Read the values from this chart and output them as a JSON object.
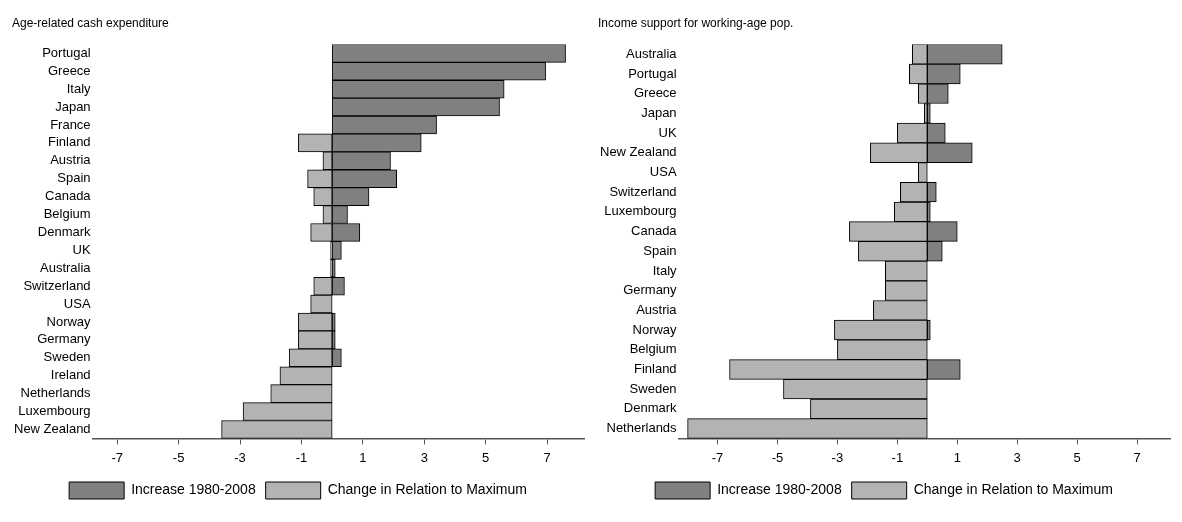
{
  "chart_data": [
    {
      "type": "bar",
      "orientation": "horizontal",
      "title": "Age-related cash expenditure",
      "categories": [
        "Portugal",
        "Greece",
        "Italy",
        "Japan",
        "France",
        "Finland",
        "Austria",
        "Spain",
        "Canada",
        "Belgium",
        "Denmark",
        "UK",
        "Australia",
        "Switzerland",
        "USA",
        "Norway",
        "Germany",
        "Sweden",
        "Ireland",
        "Netherlands",
        "Luxembourg",
        "New Zealand"
      ],
      "series": [
        {
          "name": "Increase 1980-2008",
          "color": "#808080",
          "values": [
            7.6,
            6.95,
            5.6,
            5.45,
            3.4,
            2.9,
            1.9,
            2.1,
            1.2,
            0.5,
            0.9,
            0.3,
            0.1,
            0.4,
            null,
            0.1,
            0.1,
            0.3,
            null,
            null,
            null,
            null
          ]
        },
        {
          "name": "Change in Relation to Maximum",
          "color": "#b3b3b3",
          "values": [
            null,
            null,
            null,
            null,
            null,
            -1.1,
            -0.3,
            -0.8,
            -0.6,
            -0.3,
            -0.7,
            -0.05,
            -0.05,
            -0.6,
            -0.7,
            -1.1,
            -1.1,
            -1.4,
            -1.7,
            -2.0,
            -2.9,
            -3.6
          ]
        }
      ],
      "xlim": [
        -7.8,
        8.2
      ],
      "xticks": [
        -7,
        -5,
        -3,
        -1,
        1,
        3,
        5,
        7
      ],
      "grid": false,
      "legend": "bottom"
    },
    {
      "type": "bar",
      "orientation": "horizontal",
      "title": "Income support for working-age pop.",
      "categories": [
        "Australia",
        "Portugal",
        "Greece",
        "Japan",
        "UK",
        "New Zealand",
        "USA",
        "Switzerland",
        "Luxembourg",
        "Canada",
        "Spain",
        "Italy",
        "Germany",
        "Austria",
        "Norway",
        "Belgium",
        "Finland",
        "Sweden",
        "Denmark",
        "Netherlands"
      ],
      "series": [
        {
          "name": "Increase 1980-2008",
          "color": "#808080",
          "values": [
            2.5,
            1.1,
            0.7,
            0.1,
            0.6,
            1.5,
            null,
            0.3,
            0.1,
            1.0,
            0.5,
            null,
            null,
            null,
            0.1,
            null,
            1.1,
            null,
            null,
            null
          ]
        },
        {
          "name": "Change in Relation to Maximum",
          "color": "#b3b3b3",
          "values": [
            -0.5,
            -0.6,
            -0.3,
            -0.1,
            -1.0,
            -1.9,
            -0.3,
            -0.9,
            -1.1,
            -2.6,
            -2.3,
            -1.4,
            -1.4,
            -1.8,
            -3.1,
            -3.0,
            -6.6,
            -4.8,
            -3.9,
            -8.0
          ]
        }
      ],
      "xlim": [
        -8.3,
        8.1
      ],
      "xticks": [
        -7,
        -5,
        -3,
        -1,
        1,
        3,
        5,
        7
      ],
      "grid": false,
      "legend": "bottom"
    }
  ]
}
